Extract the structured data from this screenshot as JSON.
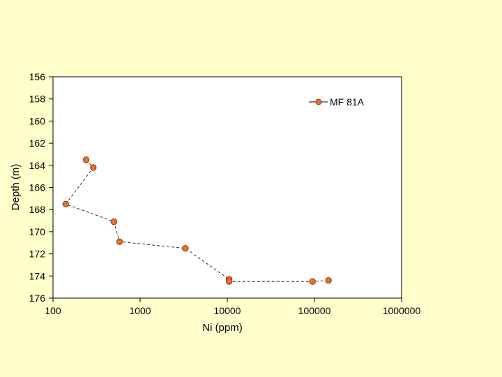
{
  "colors": {
    "background": "#FFFFCC",
    "plot_area": "#FFFFFF",
    "marker_fill": "#E8722A",
    "marker_stroke": "#8B3A10",
    "line": "#000000"
  },
  "chart_data": {
    "type": "line",
    "xlabel": "Ni (ppm)",
    "ylabel": "Depth (m)",
    "xscale": "log",
    "xlim": [
      100,
      1000000
    ],
    "ylim": [
      176,
      156
    ],
    "y_inverted": true,
    "x_ticks": [
      100,
      1000,
      10000,
      100000,
      1000000
    ],
    "x_tick_labels": [
      "100",
      "1000",
      "10000",
      "100000",
      "1000000"
    ],
    "y_ticks": [
      156,
      158,
      160,
      162,
      164,
      166,
      168,
      170,
      172,
      174,
      176
    ],
    "y_tick_labels": [
      "156",
      "158",
      "160",
      "162",
      "164",
      "166",
      "168",
      "170",
      "172",
      "174",
      "176"
    ],
    "grid": false,
    "legend_position": "top-right",
    "line_style": "dashed",
    "marker": "circle",
    "series": [
      {
        "name": "MF 81A",
        "x": [
          240,
          290,
          140,
          500,
          580,
          3300,
          10500,
          10500,
          95000,
          145000
        ],
        "y": [
          163.5,
          164.2,
          167.5,
          169.1,
          170.9,
          171.5,
          174.3,
          174.5,
          174.5,
          174.4
        ]
      }
    ]
  }
}
